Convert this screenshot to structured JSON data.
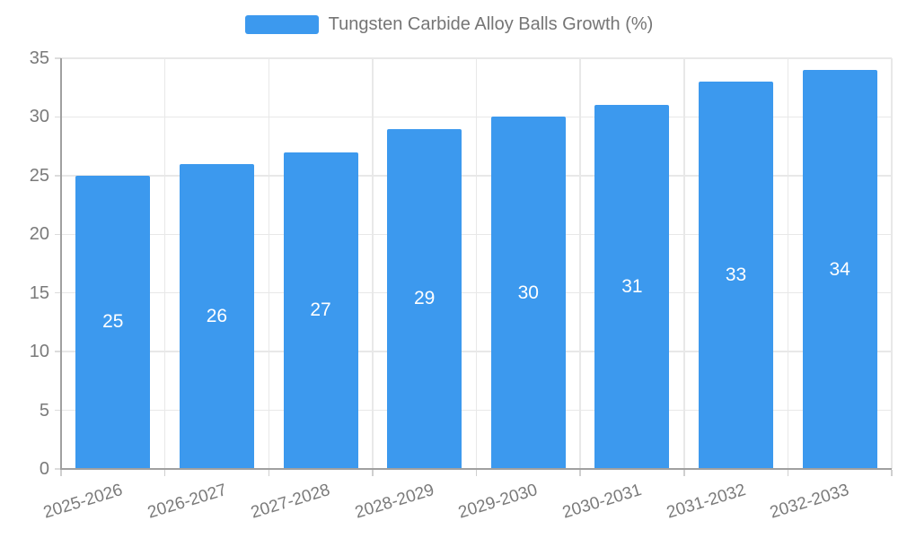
{
  "legend": {
    "label": "Tungsten Carbide Alloy Balls Growth (%)"
  },
  "chart_data": {
    "type": "bar",
    "title": "Tungsten Carbide Alloy Balls Growth (%)",
    "series_name": "Tungsten Carbide Alloy Balls Growth (%)",
    "categories": [
      "2025-2026",
      "2026-2027",
      "2027-2028",
      "2028-2029",
      "2029-2030",
      "2030-2031",
      "2031-2032",
      "2032-2033"
    ],
    "values": [
      25,
      26,
      27,
      29,
      30,
      31,
      33,
      34
    ],
    "value_labels": [
      "25",
      "26",
      "27",
      "29",
      "30",
      "31",
      "33",
      "34"
    ],
    "xlabel": "",
    "ylabel": "",
    "ylim": [
      0,
      35
    ],
    "ytick_step": 5,
    "yticks": [
      0,
      5,
      10,
      15,
      20,
      25,
      30,
      35
    ],
    "grid": true,
    "legend_position": "top",
    "colors": {
      "bar": "#3C99EE",
      "value_label": "#FFFFFF",
      "grid": "#E8E8E8",
      "axis": "#A0A0A0",
      "tick_text": "#7A7A7A",
      "legend_text": "#757575",
      "background": "#FFFFFF"
    }
  }
}
